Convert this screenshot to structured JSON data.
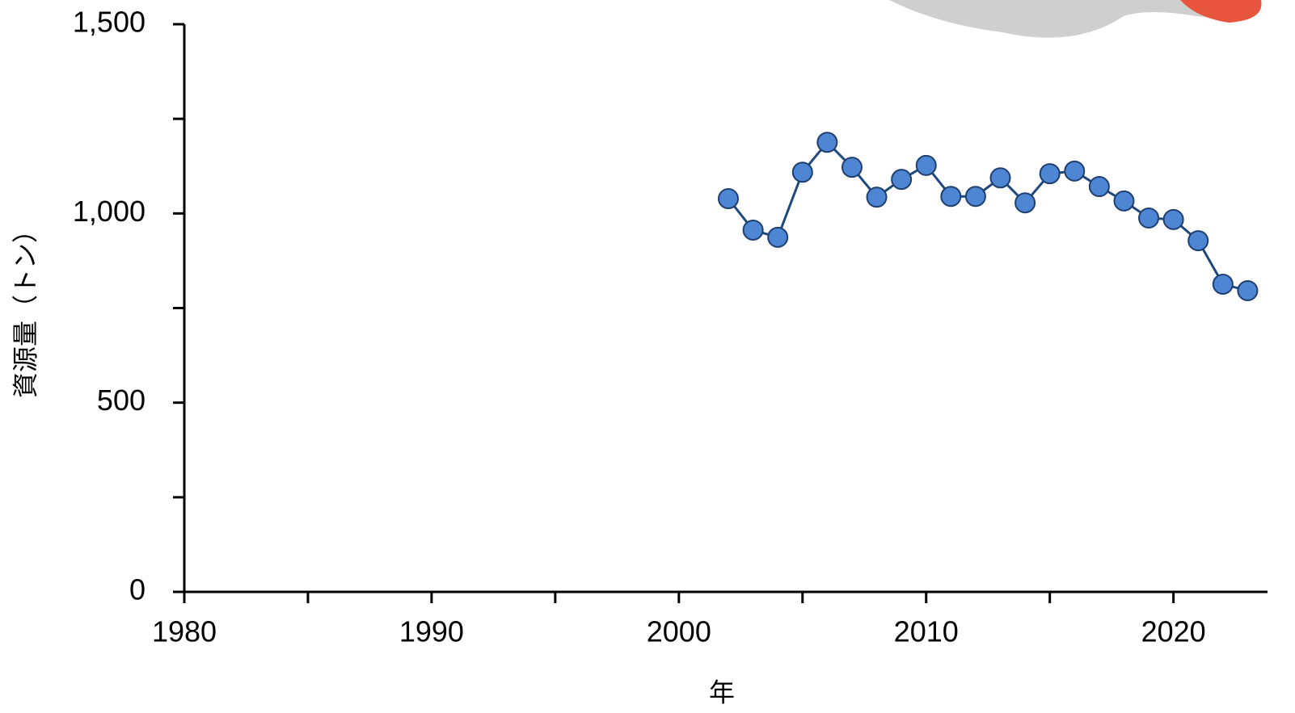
{
  "chart_data": {
    "type": "line",
    "x_label": "年",
    "y_label": "資源量（トン）",
    "x": [
      2002,
      2003,
      2004,
      2005,
      2006,
      2007,
      2008,
      2009,
      2010,
      2011,
      2012,
      2013,
      2014,
      2015,
      2016,
      2017,
      2018,
      2019,
      2020,
      2021,
      2022,
      2023
    ],
    "series": [
      {
        "color": "#4f86d4",
        "values": [
          1039,
          956,
          937,
          1109,
          1188,
          1122,
          1043,
          1090,
          1127,
          1045,
          1045,
          1094,
          1028,
          1105,
          1112,
          1071,
          1033,
          988,
          984,
          928,
          813,
          796
        ]
      }
    ],
    "xlim": [
      1980,
      2024
    ],
    "xticks": [
      1980,
      1990,
      2000,
      2010,
      2020
    ],
    "x_minor_ticks": [
      1985,
      1995,
      2005,
      2015
    ],
    "ylim": [
      0,
      1500
    ],
    "yticks": [
      0,
      500,
      {
        "value": 1000,
        "label": "1,000"
      },
      {
        "value": 1500,
        "label": "1,500"
      }
    ],
    "y_minor_ticks": [
      250,
      750,
      1250
    ],
    "grid": false
  }
}
